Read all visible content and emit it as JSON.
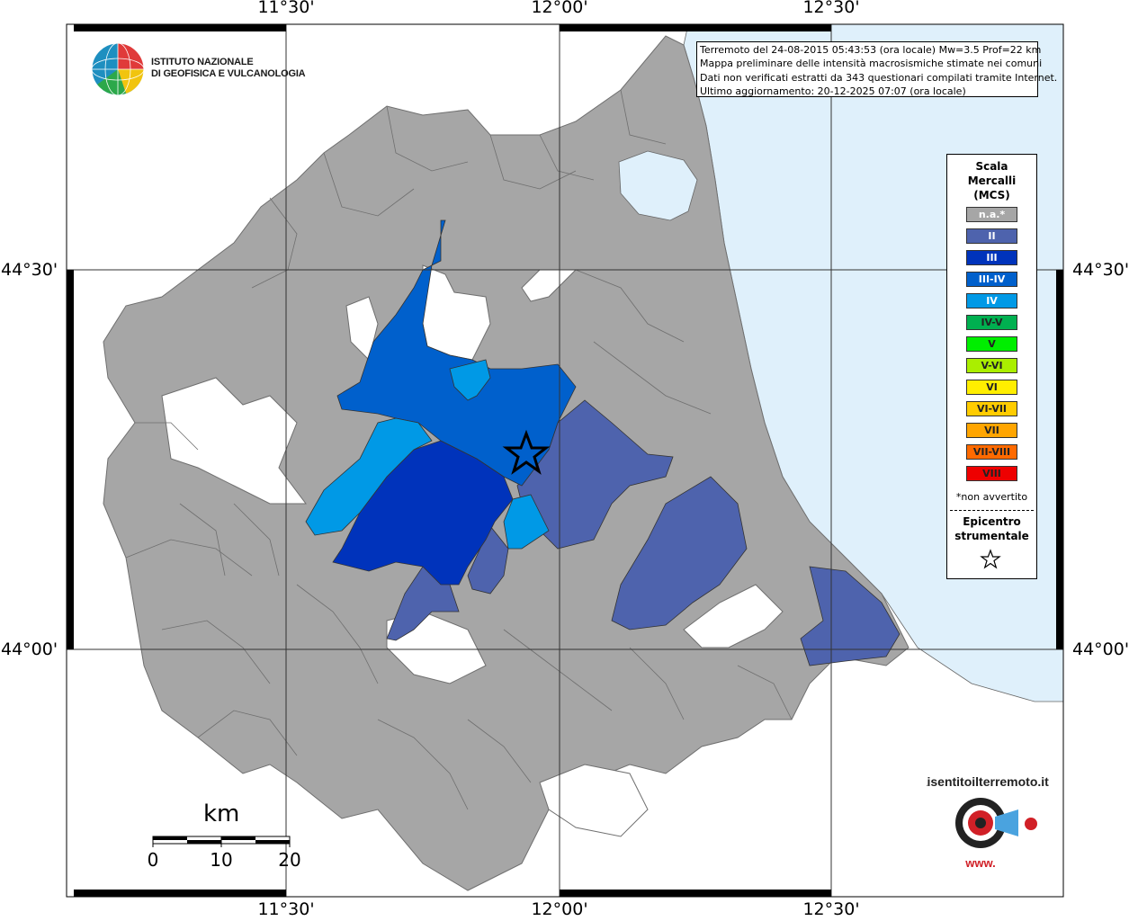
{
  "map": {
    "title_lines": [
      "Terremoto del 24-08-2015 05:43:53 (ora locale) Mw=3.5 Prof=22 km",
      "Mappa preliminare delle intensità macrosismiche stimate nei comuni",
      "Dati non verificati estratti da 343 questionari compilati tramite Internet.",
      "Ultimo aggiornamento: 20-12-2025 07:07 (ora locale)"
    ],
    "lon_ticks": [
      "11°30'",
      "12°00'",
      "12°30'"
    ],
    "lat_ticks": [
      "44°30'",
      "44°00'"
    ],
    "colors": {
      "land": "#a6a6a6",
      "sea": "#dff0fb",
      "no_data": "#ffffff",
      "border": "#6f6f6f"
    }
  },
  "logo": {
    "line1": "ISTITUTO NAZIONALE",
    "line2": "DI GEOFISICA E VULCANOLOGIA"
  },
  "legend": {
    "title": [
      "Scala",
      "Mercalli",
      "(MCS)"
    ],
    "items": [
      {
        "label": "n.a.*",
        "color": "#a6a6a6"
      },
      {
        "label": "II",
        "color": "#4e63ad"
      },
      {
        "label": "III",
        "color": "#0033bb"
      },
      {
        "label": "III-IV",
        "color": "#0060cc"
      },
      {
        "label": "IV",
        "color": "#0099e6"
      },
      {
        "label": "IV-V",
        "color": "#00b050"
      },
      {
        "label": "V",
        "color": "#00ee00"
      },
      {
        "label": "V-VI",
        "color": "#aaee00"
      },
      {
        "label": "VI",
        "color": "#ffee00"
      },
      {
        "label": "VI-VII",
        "color": "#ffcc00"
      },
      {
        "label": "VII",
        "color": "#ffa500"
      },
      {
        "label": "VII-VIII",
        "color": "#ff6a00"
      },
      {
        "label": "VIII",
        "color": "#ee0000"
      }
    ],
    "note": "*non avvertito",
    "epicenter_label": [
      "Epicentro",
      "strumentale"
    ]
  },
  "scalebar": {
    "unit": "km",
    "labels": [
      "0",
      "10",
      "20"
    ]
  },
  "brand": {
    "name": "haisentitoilterremoto.it",
    "prefix": "www."
  }
}
